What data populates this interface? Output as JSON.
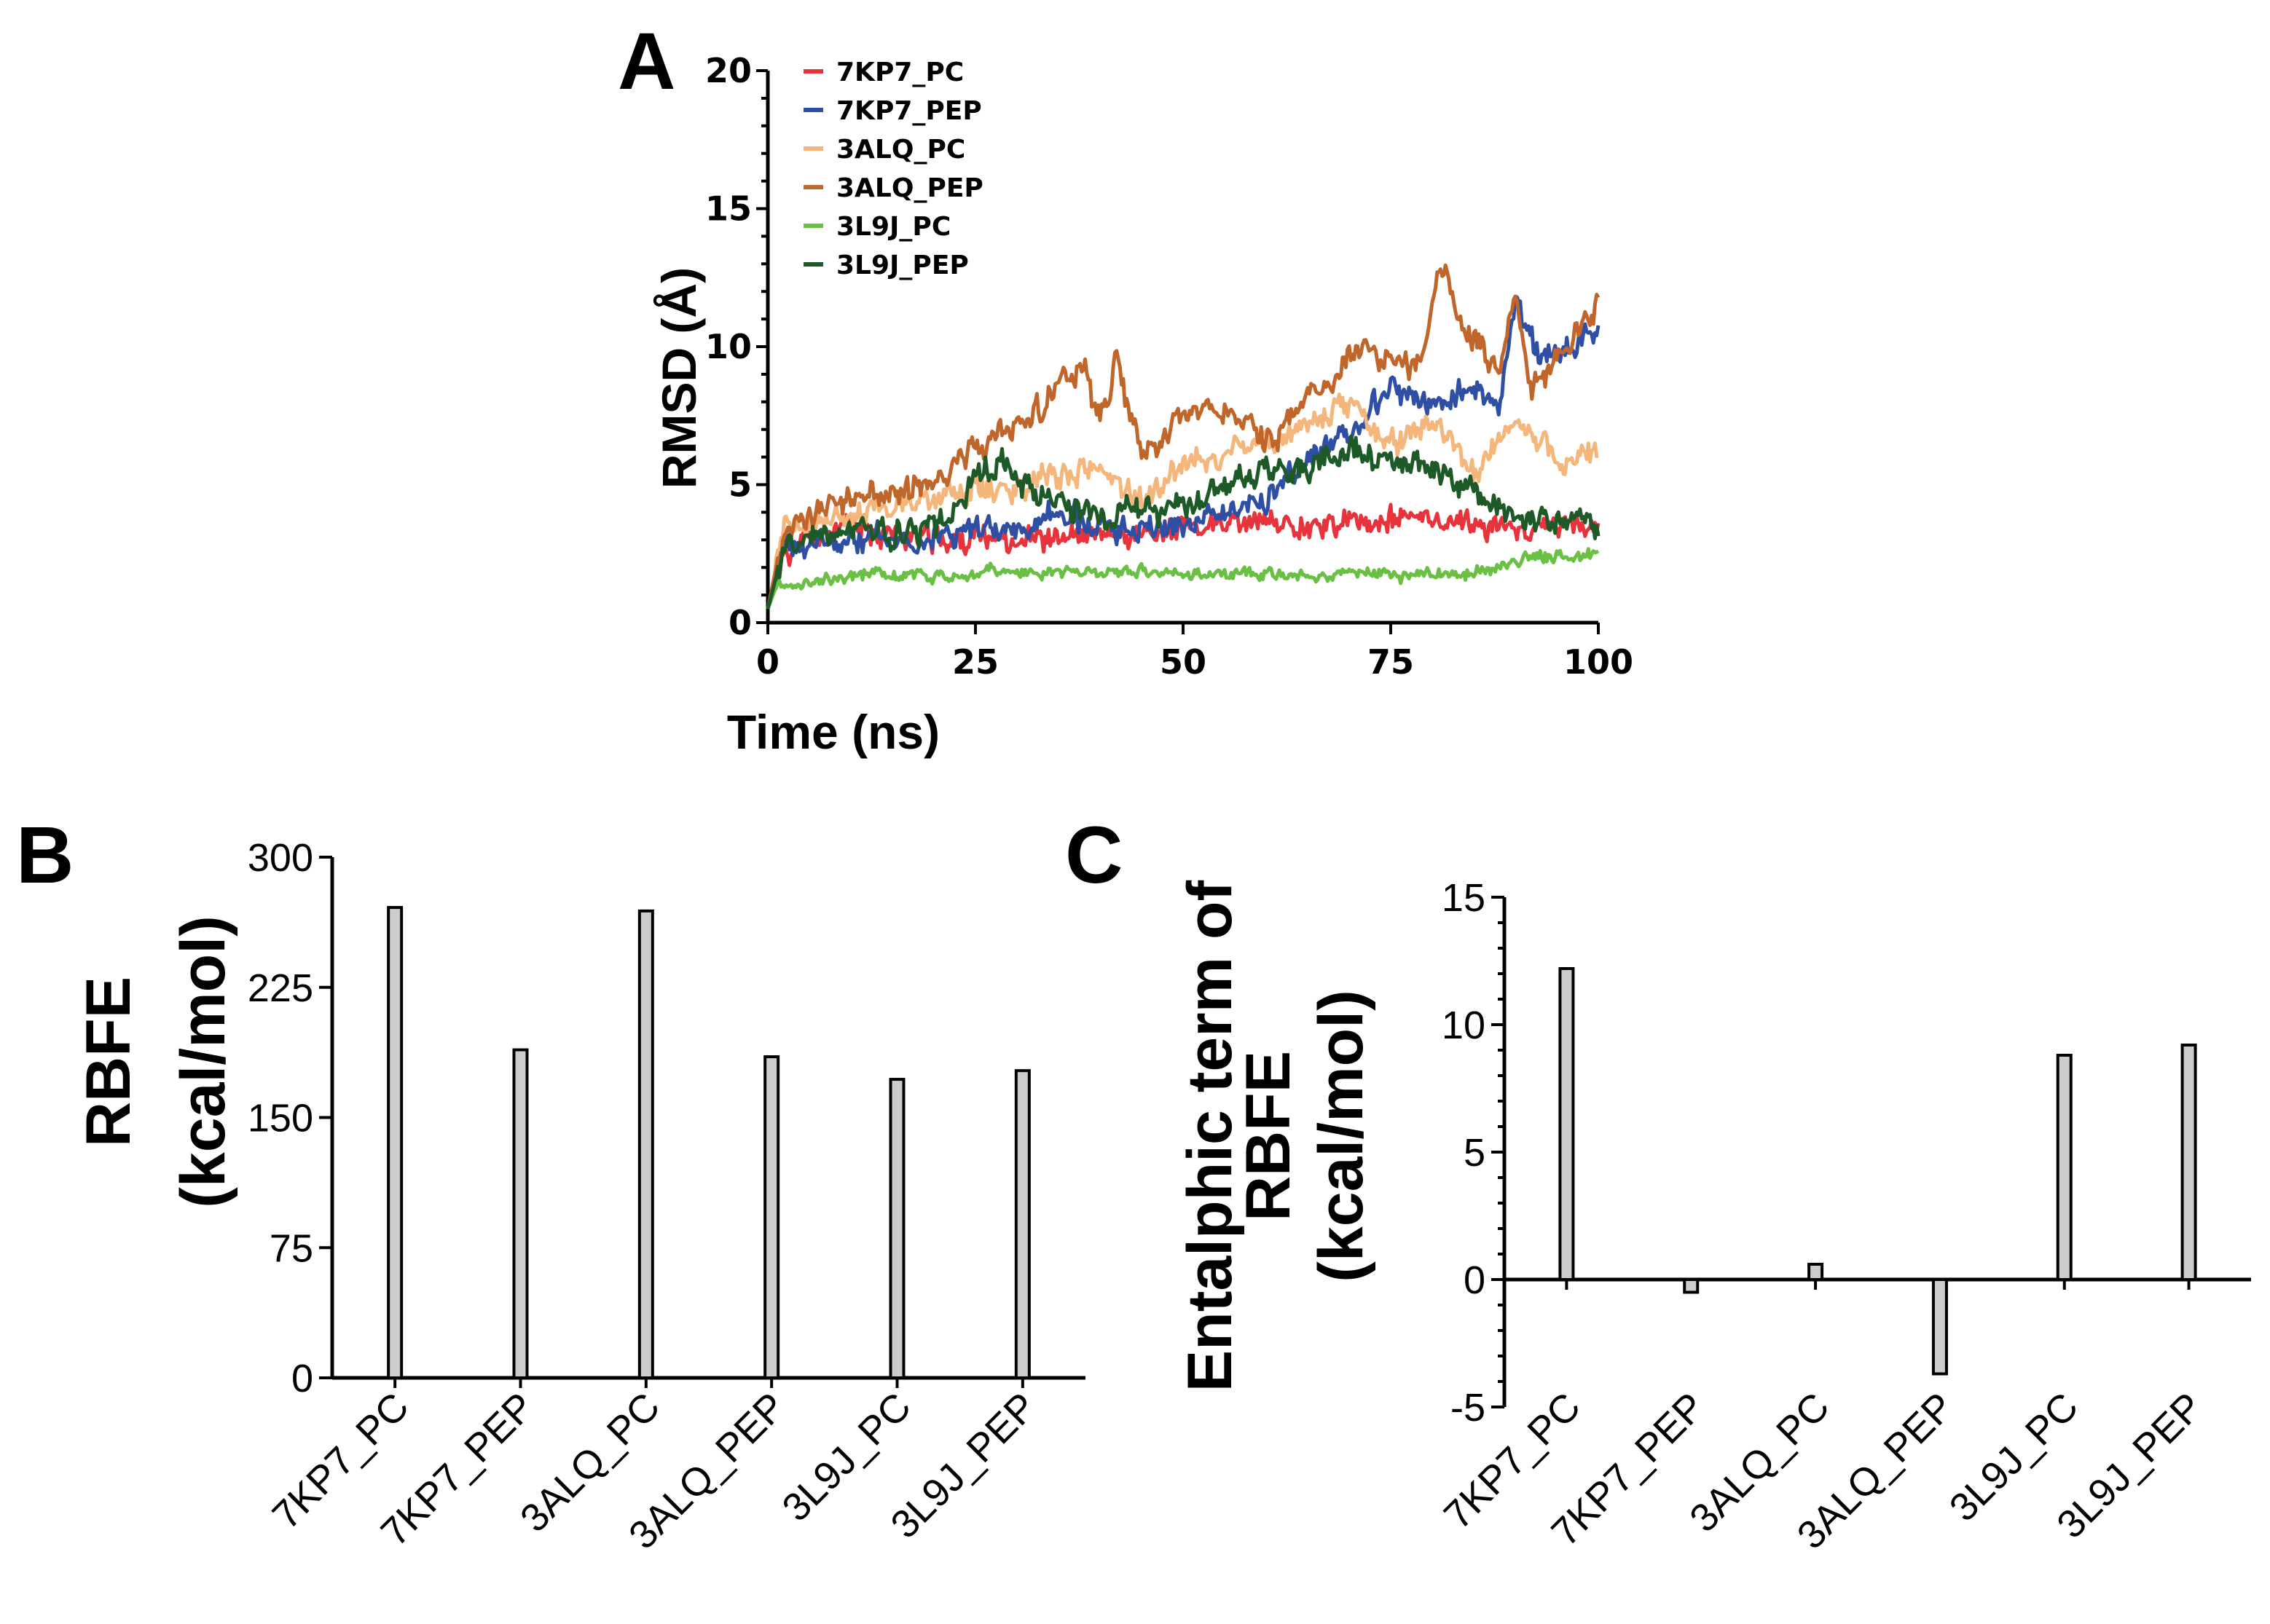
{
  "chart_data": [
    {
      "panel": "A",
      "type": "line",
      "xlabel": "Time (ns)",
      "ylabel": "RMSD (Å)",
      "xlim": [
        0,
        100
      ],
      "ylim": [
        0,
        20
      ],
      "x_ticks": [
        0,
        25,
        50,
        75,
        100
      ],
      "y_ticks": [
        0,
        5,
        10,
        15,
        20
      ],
      "series": [
        {
          "name": "7KP7_PC",
          "color": "#e8333c",
          "seed": 11,
          "anchors": [
            [
              0,
              0.5
            ],
            [
              2,
              2.6
            ],
            [
              10,
              3.5
            ],
            [
              20,
              3.0
            ],
            [
              30,
              3.1
            ],
            [
              40,
              3.0
            ],
            [
              50,
              3.4
            ],
            [
              60,
              3.6
            ],
            [
              70,
              3.6
            ],
            [
              80,
              3.8
            ],
            [
              90,
              3.4
            ],
            [
              100,
              3.5
            ]
          ]
        },
        {
          "name": "7KP7_PEP",
          "color": "#2e4fa3",
          "seed": 23,
          "anchors": [
            [
              0,
              0.5
            ],
            [
              2,
              2.6
            ],
            [
              10,
              3.0
            ],
            [
              20,
              3.2
            ],
            [
              30,
              3.3
            ],
            [
              35,
              4.0
            ],
            [
              40,
              3.4
            ],
            [
              50,
              3.6
            ],
            [
              60,
              4.5
            ],
            [
              65,
              5.8
            ],
            [
              70,
              6.8
            ],
            [
              75,
              8.5
            ],
            [
              80,
              7.8
            ],
            [
              85,
              8.6
            ],
            [
              88,
              7.5
            ],
            [
              90,
              11.5
            ],
            [
              93,
              9.5
            ],
            [
              97,
              10.2
            ],
            [
              100,
              10.5
            ]
          ]
        },
        {
          "name": "3ALQ_PC",
          "color": "#f4b67a",
          "seed": 37,
          "anchors": [
            [
              0,
              0.5
            ],
            [
              2,
              3.2
            ],
            [
              10,
              4.0
            ],
            [
              20,
              4.5
            ],
            [
              30,
              5.0
            ],
            [
              40,
              5.6
            ],
            [
              45,
              4.4
            ],
            [
              50,
              5.8
            ],
            [
              60,
              6.5
            ],
            [
              65,
              7.2
            ],
            [
              70,
              8.0
            ],
            [
              75,
              6.5
            ],
            [
              80,
              7.2
            ],
            [
              85,
              5.5
            ],
            [
              90,
              7.2
            ],
            [
              95,
              6.0
            ],
            [
              100,
              6.2
            ]
          ]
        },
        {
          "name": "3ALQ_PEP",
          "color": "#c0662a",
          "seed": 53,
          "anchors": [
            [
              0,
              0.5
            ],
            [
              2,
              3.5
            ],
            [
              10,
              4.5
            ],
            [
              20,
              5.0
            ],
            [
              25,
              6.5
            ],
            [
              30,
              7.0
            ],
            [
              35,
              8.5
            ],
            [
              38,
              9.0
            ],
            [
              40,
              7.2
            ],
            [
              42,
              9.5
            ],
            [
              45,
              6.0
            ],
            [
              50,
              7.5
            ],
            [
              55,
              7.8
            ],
            [
              60,
              6.5
            ],
            [
              65,
              8.0
            ],
            [
              68,
              8.5
            ],
            [
              70,
              10.0
            ],
            [
              75,
              9.8
            ],
            [
              78,
              9.0
            ],
            [
              81,
              13.0
            ],
            [
              84,
              10.5
            ],
            [
              88,
              9.2
            ],
            [
              90,
              11.5
            ],
            [
              92,
              8.5
            ],
            [
              95,
              9.5
            ],
            [
              98,
              10.5
            ],
            [
              100,
              12.0
            ]
          ]
        },
        {
          "name": "3L9J_PC",
          "color": "#6abf45",
          "seed": 71,
          "anchors": [
            [
              0,
              0.5
            ],
            [
              1,
              1.3
            ],
            [
              10,
              1.7
            ],
            [
              25,
              1.8
            ],
            [
              50,
              1.8
            ],
            [
              60,
              1.7
            ],
            [
              70,
              1.8
            ],
            [
              80,
              1.7
            ],
            [
              88,
              1.9
            ],
            [
              92,
              2.4
            ],
            [
              100,
              2.4
            ]
          ]
        },
        {
          "name": "3L9J_PEP",
          "color": "#1e5a27",
          "seed": 89,
          "anchors": [
            [
              0,
              0.5
            ],
            [
              2,
              2.8
            ],
            [
              10,
              3.2
            ],
            [
              20,
              3.3
            ],
            [
              25,
              5.0
            ],
            [
              28,
              6.0
            ],
            [
              32,
              4.8
            ],
            [
              40,
              3.8
            ],
            [
              50,
              4.2
            ],
            [
              60,
              5.5
            ],
            [
              65,
              5.6
            ],
            [
              70,
              6.3
            ],
            [
              75,
              5.8
            ],
            [
              80,
              5.5
            ],
            [
              85,
              4.8
            ],
            [
              90,
              3.8
            ],
            [
              95,
              3.6
            ],
            [
              100,
              3.6
            ]
          ]
        }
      ]
    },
    {
      "panel": "B",
      "type": "bar",
      "ylabel_line1": "RBFE",
      "ylabel_line2": "(kcal/mol)",
      "ylim": [
        0,
        300
      ],
      "y_ticks": [
        0,
        75,
        150,
        225,
        300
      ],
      "categories": [
        "7KP7_PC",
        "7KP7_PEP",
        "3ALQ_PC",
        "3ALQ_PEP",
        "3L9J_PC",
        "3L9J_PEP"
      ],
      "values": [
        271,
        189,
        269,
        185,
        172,
        177
      ]
    },
    {
      "panel": "C",
      "type": "bar",
      "ylabel_line1": "Entalphic term of",
      "ylabel_line2": "RBFE",
      "ylabel_line3": "(kcal/mol)",
      "ylim": [
        -5,
        15
      ],
      "y_ticks": [
        -5,
        0,
        5,
        10,
        15
      ],
      "categories": [
        "7KP7_PC",
        "7KP7_PEP",
        "3ALQ_PC",
        "3ALQ_PEP",
        "3L9J_PC",
        "3L9J_PEP"
      ],
      "values": [
        12.2,
        -0.5,
        0.6,
        -3.7,
        8.8,
        9.2
      ]
    }
  ],
  "bar_fill": "#cccccc",
  "axis_color": "#000000"
}
